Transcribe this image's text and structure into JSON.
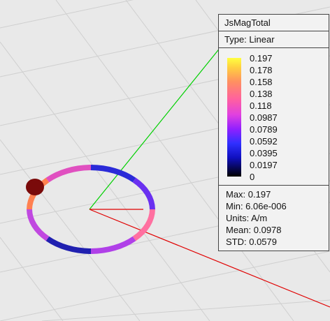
{
  "legend": {
    "title": "JsMagTotal",
    "type": "Type: Linear",
    "scale_labels": [
      "0.197",
      "0.178",
      "0.158",
      "0.138",
      "0.118",
      "0.0987",
      "0.0789",
      "0.0592",
      "0.0395",
      "0.0197",
      "0"
    ],
    "stats": [
      "Max: 0.197",
      "Min: 6.06e-006",
      "Units: A/m",
      "Mean: 0.0978",
      "STD: 0.0579"
    ]
  }
}
